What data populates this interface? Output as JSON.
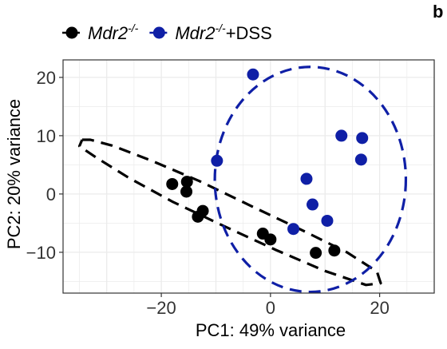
{
  "chart_data": {
    "type": "scatter",
    "xlabel": "PC1: 49% variance",
    "ylabel": "PC2: 20% variance",
    "xlim": [
      -38,
      30
    ],
    "ylim": [
      -17,
      23
    ],
    "x_ticks": [
      -20,
      0,
      20
    ],
    "x_tick_labels": [
      "−20",
      "0",
      "20"
    ],
    "y_ticks": [
      -10,
      0,
      10,
      20
    ],
    "y_tick_labels": [
      "−10",
      "0",
      "10",
      "20"
    ],
    "grid": true,
    "legend_position": "top",
    "panel_letter": "b",
    "series": [
      {
        "name_base": "Mdr2",
        "name_sup": "-/-",
        "name_suffix": "",
        "color": "#000000",
        "points": [
          {
            "x": -18,
            "y": 1.7
          },
          {
            "x": -15.3,
            "y": 2.1
          },
          {
            "x": -15.4,
            "y": 0.4
          },
          {
            "x": -12.4,
            "y": -2.9
          },
          {
            "x": -13.3,
            "y": -3.9
          },
          {
            "x": -1.4,
            "y": -6.8
          },
          {
            "x": 0,
            "y": -7.8
          },
          {
            "x": 8.3,
            "y": -10.1
          },
          {
            "x": 11.7,
            "y": -9.7
          }
        ],
        "ellipse": [
          {
            "x": -34.5,
            "y": 9.3
          },
          {
            "x": -33,
            "y": 9.3
          },
          {
            "x": -29,
            "y": 8.3
          },
          {
            "x": -22,
            "y": 5.8
          },
          {
            "x": -13,
            "y": 2.2
          },
          {
            "x": -3,
            "y": -2.3
          },
          {
            "x": 6,
            "y": -6.3
          },
          {
            "x": 14,
            "y": -10.0
          },
          {
            "x": 19.5,
            "y": -13.3
          },
          {
            "x": 20.2,
            "y": -15.3
          },
          {
            "x": 17.5,
            "y": -15.6
          },
          {
            "x": 10,
            "y": -13.2
          },
          {
            "x": 1,
            "y": -9.6
          },
          {
            "x": -9,
            "y": -5.3
          },
          {
            "x": -18,
            "y": -1.3
          },
          {
            "x": -26,
            "y": 2.8
          },
          {
            "x": -32,
            "y": 6.3
          },
          {
            "x": -35,
            "y": 8.2
          },
          {
            "x": -34.5,
            "y": 9.3
          }
        ]
      },
      {
        "name_base": "Mdr2",
        "name_sup": "-/-",
        "name_suffix": "+DSS",
        "color": "#0f1fa6",
        "points": [
          {
            "x": -3.2,
            "y": 20.5
          },
          {
            "x": -9.8,
            "y": 5.7
          },
          {
            "x": 13,
            "y": 10
          },
          {
            "x": 16.8,
            "y": 9.6
          },
          {
            "x": 16.6,
            "y": 5.9
          },
          {
            "x": 6.6,
            "y": 2.6
          },
          {
            "x": 7.7,
            "y": -1.8
          },
          {
            "x": 10.4,
            "y": -4.6
          },
          {
            "x": 4.2,
            "y": -6.0
          }
        ],
        "ellipse_center": {
          "x": 7.3,
          "y": 2.5
        },
        "ellipse_radius_x": 17.5,
        "ellipse_radius_y": 19.3
      }
    ]
  }
}
